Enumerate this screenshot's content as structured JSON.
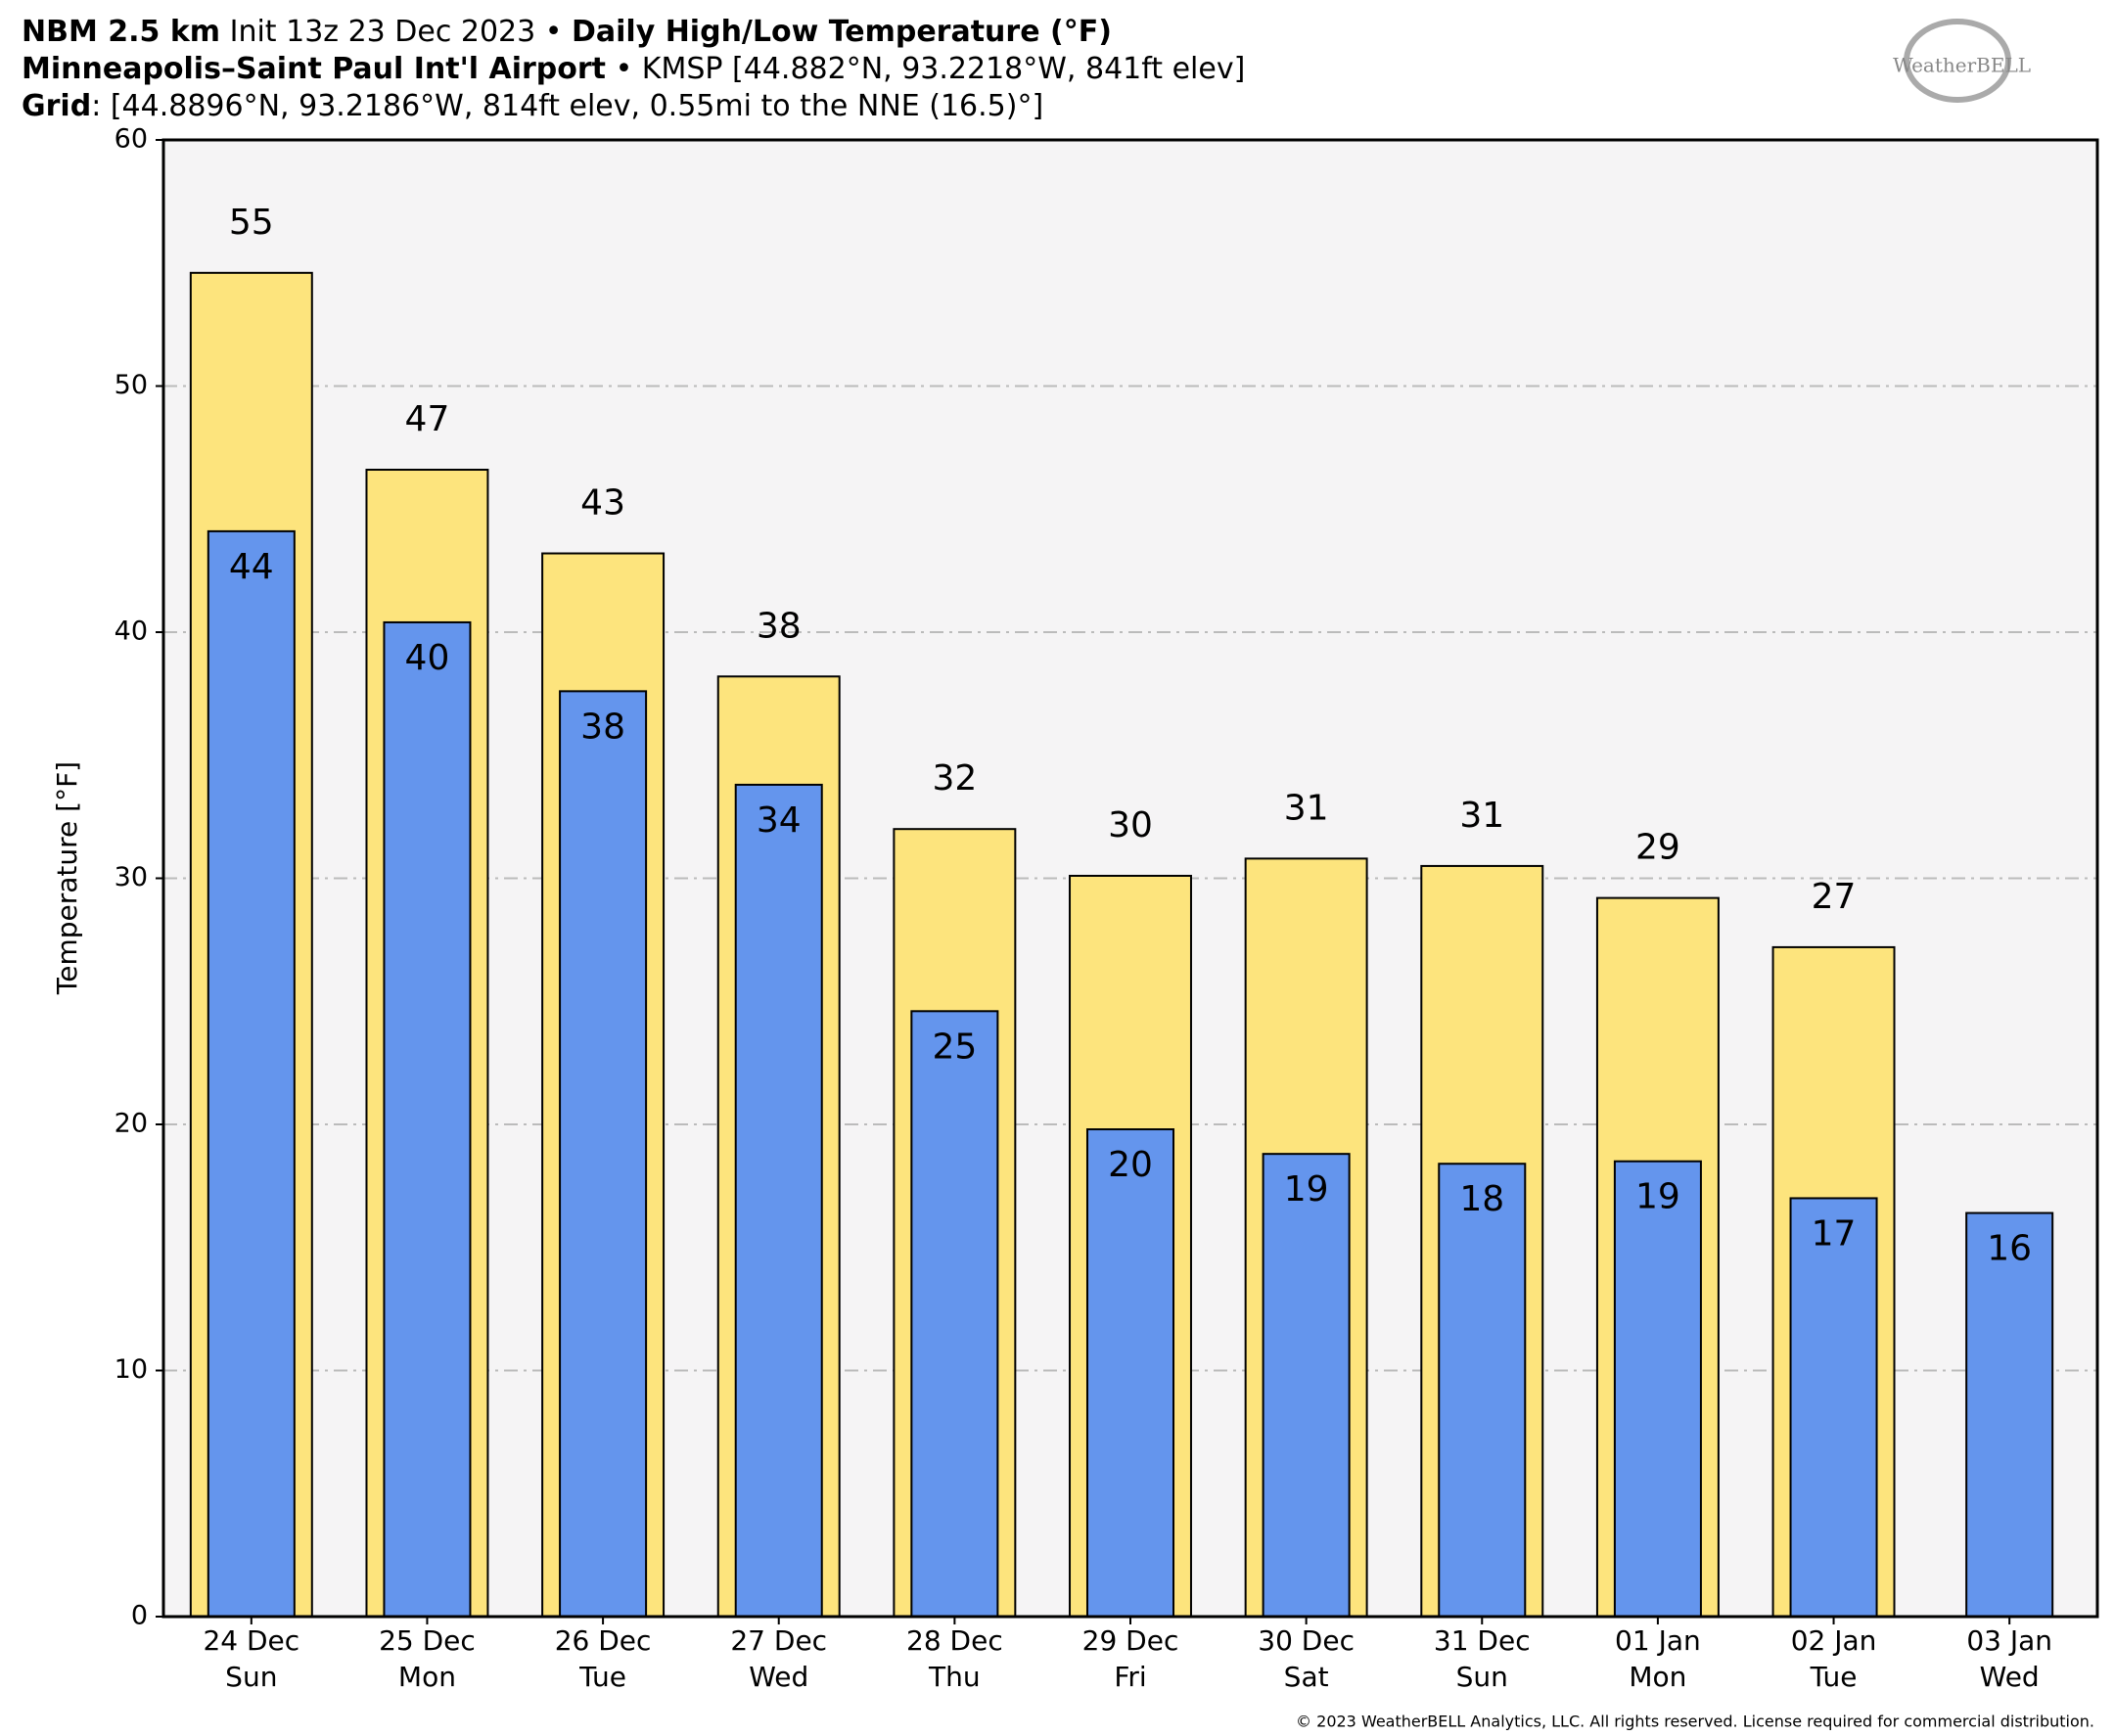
{
  "chart_data": {
    "type": "bar",
    "header": [
      [
        {
          "text": "NBM 2.5 km",
          "bold": true
        },
        {
          "text": " Init 13z 23 Dec 2023 • ",
          "bold": false
        },
        {
          "text": "Daily High/Low Temperature (°F)",
          "bold": true
        }
      ],
      [
        {
          "text": "Minneapolis–Saint Paul Int'l Airport",
          "bold": true
        },
        {
          "text": " • KMSP [44.882°N, 93.2218°W, 841ft elev]",
          "bold": false
        }
      ],
      [
        {
          "text": "Grid",
          "bold": true
        },
        {
          "text": ": [44.8896°N, 93.2186°W, 814ft elev, 0.55mi to the NNE (16.5)°]",
          "bold": false
        }
      ]
    ],
    "logo": "WeatherBELL",
    "copyright": "© 2023 WeatherBELL Analytics, LLC. All rights reserved. License required for commercial distribution.",
    "y_label": "Temperature [°F]",
    "categories": [
      [
        "24 Dec",
        "Sun"
      ],
      [
        "25 Dec",
        "Mon"
      ],
      [
        "26 Dec",
        "Tue"
      ],
      [
        "27 Dec",
        "Wed"
      ],
      [
        "28 Dec",
        "Thu"
      ],
      [
        "29 Dec",
        "Fri"
      ],
      [
        "30 Dec",
        "Sat"
      ],
      [
        "31 Dec",
        "Sun"
      ],
      [
        "01 Jan",
        "Mon"
      ],
      [
        "02 Jan",
        "Tue"
      ],
      [
        "03 Jan",
        "Wed"
      ]
    ],
    "series": [
      {
        "name": "High",
        "color": "#fde47d",
        "width": 0.69,
        "values": [
          54.6,
          46.6,
          43.2,
          38.2,
          32.0,
          30.1,
          30.8,
          30.5,
          29.2,
          27.2,
          null
        ],
        "value_labels": [
          "55",
          "47",
          "43",
          "38",
          "32",
          "30",
          "31",
          "31",
          "29",
          "27",
          null
        ]
      },
      {
        "name": "Low",
        "color": "#6495ed",
        "width": 0.49,
        "values": [
          44.1,
          40.4,
          37.6,
          33.8,
          24.6,
          19.8,
          18.8,
          18.4,
          18.5,
          17.0,
          16.4
        ],
        "value_labels": [
          "44",
          "40",
          "38",
          "34",
          "25",
          "20",
          "19",
          "18",
          "19",
          "17",
          "16"
        ]
      }
    ],
    "ylim": [
      0,
      60
    ],
    "yticks": [
      0,
      10,
      20,
      30,
      40,
      50,
      60
    ],
    "grid": true
  }
}
